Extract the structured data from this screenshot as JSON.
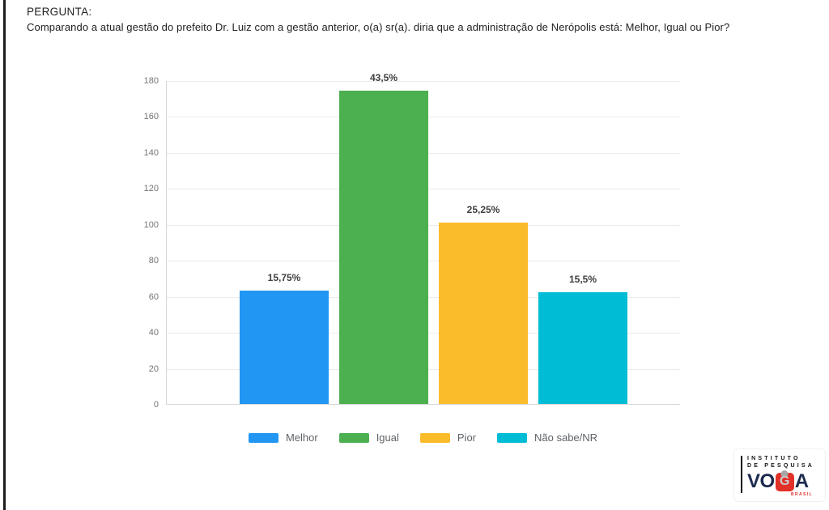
{
  "page": {
    "heading": "PERGUNTA:",
    "question": "Comparando a atual gestão do prefeito Dr. Luiz com a gestão anterior, o(a) sr(a). diria que a administração de Nerópolis está: Melhor, Igual ou Pior?"
  },
  "chart_data": {
    "type": "bar",
    "title": "",
    "xlabel": "",
    "ylabel": "",
    "categories": [
      "Melhor",
      "Igual",
      "Pior",
      "Não sabe/NR"
    ],
    "values": [
      63,
      174,
      101,
      62
    ],
    "bar_labels": [
      "15,75%",
      "43,5%",
      "25,25%",
      "15,5%"
    ],
    "colors": [
      "#2196F3",
      "#4CAF50",
      "#FBBC2C",
      "#00BCD4"
    ],
    "ylim": [
      0,
      180
    ],
    "yticks": [
      0,
      20,
      40,
      60,
      80,
      100,
      120,
      140,
      160,
      180
    ],
    "grid": true,
    "legend_position": "bottom"
  },
  "logo": {
    "line1": "INSTITUTO",
    "line2": "DE PESQUISA",
    "brand_prefix": "VO",
    "brand_g": "G",
    "brand_suffix": "A",
    "country": "BRASIL",
    "brand_red": "#E23128",
    "brand_navy": "#1C2B4E"
  }
}
